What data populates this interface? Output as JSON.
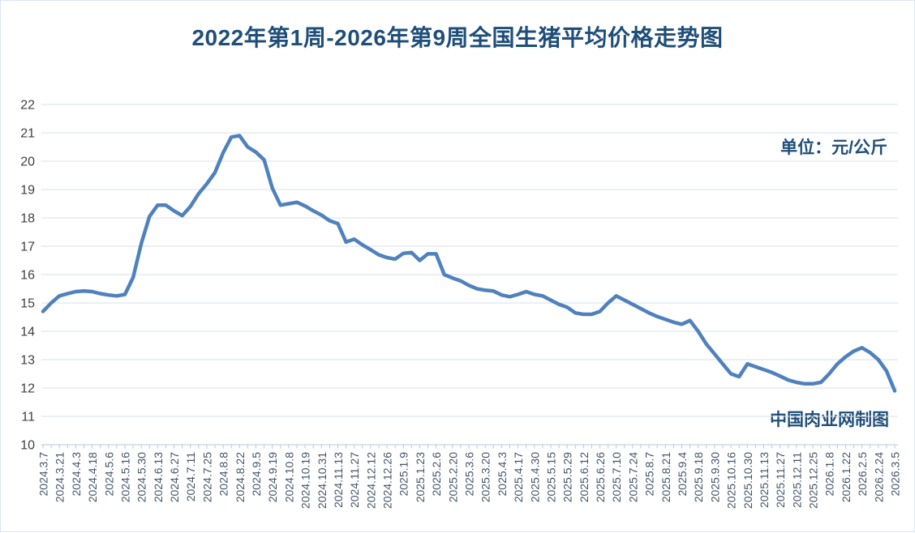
{
  "title": "2022年第1周-2026年第9周全国生猪平均价格走势图",
  "unit_label": "单位：元/公斤",
  "credit_label": "中国肉业网制图",
  "colors": {
    "title_navy": "#1f4e79",
    "line_blue": "#4f81bd",
    "gridline": "#dadfe8",
    "axis_line": "#b6c7de",
    "y_label": "#3f3f3f",
    "x_label": "#44546a"
  },
  "chart_data": {
    "type": "line",
    "title": "2022年第1周-2026年第9周全国生猪平均价格走势图",
    "ylabel": "元/公斤",
    "ylim": [
      10,
      22
    ],
    "y_ticks": [
      22,
      21,
      20,
      19,
      18,
      17,
      16,
      15,
      14,
      13,
      12,
      11,
      10
    ],
    "grid": true,
    "legend_position": "none",
    "x_labels_every_n_points": 2,
    "x_labels": [
      "2024.3.7",
      "2024.3.21",
      "2024.4.3",
      "2024.4.18",
      "2024.5.6",
      "2024.5.16",
      "2024.5.30",
      "2024.6.13",
      "2024.6.27",
      "2024.7.11",
      "2024.7.25",
      "2024.8.8",
      "2024.8.22",
      "2024.9.5",
      "2024.9.19",
      "2024.10.8",
      "2024.10.19",
      "2024.10.31",
      "2024.11.13",
      "2024.11.27",
      "2024.12.12",
      "2024.12.26",
      "2025.1.9",
      "2025.1.23",
      "2025.2.6",
      "2025.2.20",
      "2025.3.6",
      "2025.3.20",
      "2025.4.3",
      "2025.4.17",
      "2025.4.30",
      "2025.5.15",
      "2025.5.29",
      "2025.6.12",
      "2025.6.26",
      "2025.7.10",
      "2025.7.24",
      "2025.8.7",
      "2025.8.21",
      "2025.9.4",
      "2025.9.18",
      "2025.9.30",
      "2025.10.16",
      "2025.10.30",
      "2025.11.13",
      "2025.11.27",
      "2025.12.11",
      "2025.12.25",
      "2026.1.8",
      "2026.1.22",
      "2026.2.5",
      "2026.2.24",
      "2026.3.5"
    ],
    "series": [
      {
        "name": "全国生猪平均价格",
        "values": [
          14.7,
          15.0,
          15.25,
          15.33,
          15.4,
          15.42,
          15.4,
          15.33,
          15.28,
          15.25,
          15.3,
          15.9,
          17.1,
          18.05,
          18.45,
          18.45,
          18.25,
          18.08,
          18.4,
          18.85,
          19.2,
          19.6,
          20.3,
          20.85,
          20.9,
          20.5,
          20.32,
          20.05,
          19.05,
          18.45,
          18.5,
          18.55,
          18.42,
          18.25,
          18.1,
          17.9,
          17.8,
          17.15,
          17.25,
          17.05,
          16.88,
          16.7,
          16.6,
          16.55,
          16.75,
          16.78,
          16.5,
          16.73,
          16.73,
          16.0,
          15.88,
          15.78,
          15.62,
          15.5,
          15.45,
          15.42,
          15.28,
          15.22,
          15.3,
          15.4,
          15.3,
          15.25,
          15.1,
          14.95,
          14.85,
          14.65,
          14.6,
          14.6,
          14.7,
          15.0,
          15.25,
          15.1,
          14.95,
          14.8,
          14.65,
          14.52,
          14.42,
          14.32,
          14.25,
          14.38,
          14.0,
          13.55,
          13.2,
          12.85,
          12.5,
          12.4,
          12.85,
          12.75,
          12.65,
          12.55,
          12.42,
          12.28,
          12.2,
          12.15,
          12.15,
          12.2,
          12.5,
          12.85,
          13.1,
          13.3,
          13.42,
          13.25,
          13.0,
          12.6,
          11.9
        ]
      }
    ]
  }
}
